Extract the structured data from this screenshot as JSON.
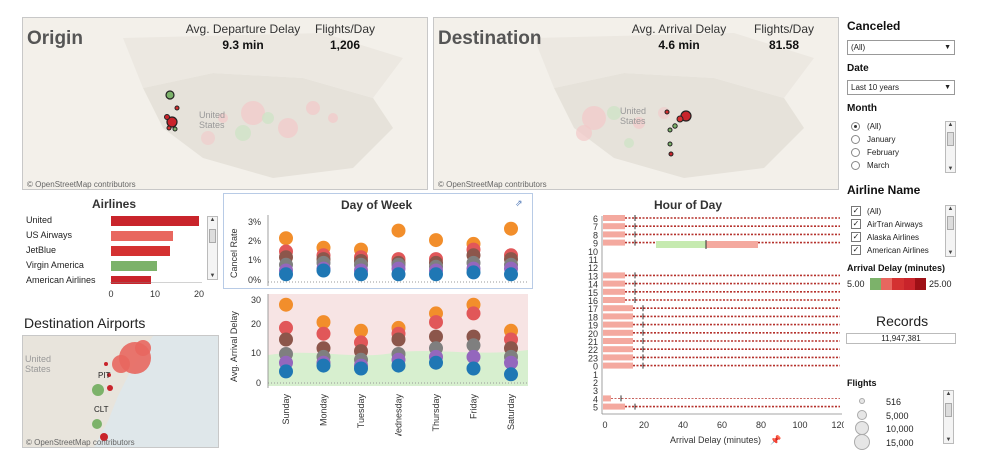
{
  "origin": {
    "title": "Origin",
    "kpi1_label": "Avg. Departure Delay",
    "kpi1_value": "9.3 min",
    "kpi2_label": "Flights/Day",
    "kpi2_value": "1,206",
    "map_label": "United States",
    "attribution": "© OpenStreetMap contributors"
  },
  "destination": {
    "title": "Destination",
    "kpi1_label": "Avg. Arrival Delay",
    "kpi1_value": "4.6 min",
    "kpi2_label": "Flights/Day",
    "kpi2_value": "81.58",
    "map_label": "United States",
    "attribution": "© OpenStreetMap contributors"
  },
  "airlines": {
    "title": "Airlines",
    "rows": [
      {
        "name": "United",
        "value": 20,
        "color": "#c9242b"
      },
      {
        "name": "US Airways",
        "value": 14,
        "color": "#e8675f"
      },
      {
        "name": "JetBlue",
        "value": 13.5,
        "color": "#d43131"
      },
      {
        "name": "Virgin America",
        "value": 10.5,
        "color": "#7cb26a"
      },
      {
        "name": "American Airlines",
        "value": 9,
        "color": "#c9242b"
      }
    ],
    "ticks": [
      "0",
      "10",
      "20"
    ]
  },
  "dest_airports": {
    "title": "Destination Airports",
    "labels": [
      "PIT",
      "CLT"
    ],
    "map_label": "United States",
    "attribution": "© OpenStreetMap contributors"
  },
  "day_of_week": {
    "title": "Day of Week",
    "top_axis_label": "Cancel Rate",
    "bottom_axis_label": "Avg. Arrival Delay",
    "top_ticks": [
      "3%",
      "2%",
      "1%",
      "0%"
    ],
    "bottom_ticks": [
      "30",
      "20",
      "10",
      "0"
    ],
    "days": [
      "Sunday",
      "Monday",
      "Tuesday",
      "Wednesday",
      "Thursday",
      "Friday",
      "Saturday"
    ]
  },
  "hour_of_day": {
    "title": "Hour of Day",
    "hours": [
      "6",
      "7",
      "8",
      "9",
      "10",
      "11",
      "12",
      "13",
      "14",
      "15",
      "16",
      "17",
      "18",
      "19",
      "20",
      "21",
      "22",
      "23",
      "0",
      "1",
      "2",
      "3",
      "4",
      "5"
    ],
    "x_ticks": [
      "0",
      "20",
      "40",
      "60",
      "80",
      "100",
      "120"
    ],
    "x_label": "Arrival Delay (minutes)",
    "pin_icon": "pin-icon"
  },
  "filters": {
    "canceled": {
      "title": "Canceled",
      "value": "(All)"
    },
    "date": {
      "title": "Date",
      "value": "Last 10 years"
    },
    "month": {
      "title": "Month",
      "options": [
        "(All)",
        "January",
        "February",
        "March"
      ],
      "selected": "(All)"
    },
    "airline_name": {
      "title": "Airline Name",
      "options": [
        "(All)",
        "AirTran Airways",
        "Alaska Airlines",
        "American Airlines"
      ]
    },
    "arrival_delay": {
      "title": "Arrival Delay (minutes)",
      "min": "5.00",
      "max": "25.00",
      "colors": [
        "#7cb26a",
        "#e8675f",
        "#d43131",
        "#c9242b",
        "#9e1016"
      ]
    },
    "records": {
      "title": "Records",
      "value": "11,947,381"
    },
    "flights": {
      "title": "Flights",
      "sizes": [
        "516",
        "5,000",
        "10,000",
        "15,000"
      ]
    }
  }
}
